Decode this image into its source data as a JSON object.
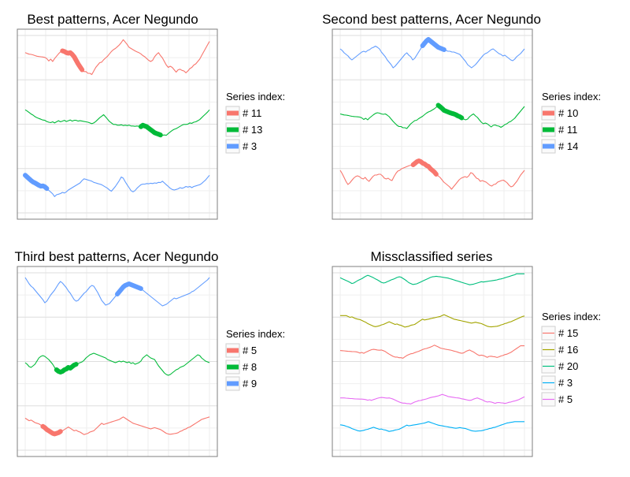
{
  "chart_data": [
    {
      "type": "line",
      "title": "Best patterns, Acer Negundo",
      "legend": {
        "title": "Series index:",
        "position": "right",
        "labels": [
          "# 11",
          "# 13",
          "# 3"
        ]
      },
      "x_range": [
        1,
        100
      ],
      "grid": true,
      "series": [
        {
          "name": "# 11",
          "color": "#F8766D",
          "offset": 0,
          "values": [
            0.55,
            0.48,
            0.42,
            0.4,
            0.36,
            0.3,
            0.25,
            0.22,
            0.2,
            0.18,
            0.15,
            0.05,
            -0.15,
            0.0,
            -0.2,
            0.05,
            0.25,
            0.45,
            0.62,
            0.7,
            0.65,
            0.55,
            0.5,
            0.55,
            0.4,
            0.2,
            -0.1,
            -0.4,
            -0.65,
            -0.9,
            -1.05,
            -1.05,
            -1.2,
            -1.2,
            -1.3,
            -1.0,
            -0.7,
            -0.5,
            -0.3,
            -0.25,
            -0.05,
            0.1,
            0.25,
            0.45,
            0.65,
            0.8,
            0.9,
            1.05,
            1.2,
            1.4,
            1.65,
            1.45,
            1.25,
            1.0,
            0.9,
            0.8,
            0.7,
            0.62,
            0.55,
            0.45,
            0.3,
            0.2,
            0.05,
            -0.1,
            -0.2,
            -0.1,
            0.2,
            0.4,
            0.55,
            0.3,
            0.1,
            -0.2,
            -0.5,
            -0.7,
            -0.6,
            -0.7,
            -0.9,
            -1.1,
            -0.9,
            -0.85,
            -0.95,
            -1.0,
            -1.15,
            -1.0,
            -0.8,
            -0.7,
            -0.5,
            -0.4,
            -0.2,
            0.0,
            0.3,
            0.6,
            0.9,
            1.2,
            1.5
          ],
          "highlight": [
            19,
            29
          ]
        },
        {
          "name": "# 13",
          "color": "#00BA38",
          "offset": 0,
          "values": [
            1.65,
            1.5,
            1.3,
            1.1,
            0.95,
            0.75,
            0.6,
            0.5,
            0.4,
            0.3,
            0.25,
            0.1,
            0.0,
            -0.05,
            0.05,
            -0.1,
            0.05,
            0.2,
            0.05,
            0.15,
            0.25,
            0.1,
            0.2,
            0.3,
            0.15,
            0.25,
            0.25,
            0.15,
            0.2,
            0.15,
            0.1,
            0.05,
            0.0,
            -0.1,
            -0.2,
            -0.1,
            0.1,
            0.35,
            0.6,
            0.8,
            1.0,
            0.7,
            0.4,
            0.1,
            -0.1,
            -0.3,
            -0.3,
            -0.4,
            -0.4,
            -0.35,
            -0.45,
            -0.4,
            -0.45,
            -0.4,
            -0.5,
            -0.5,
            -0.55,
            -0.5,
            -0.55,
            -0.6,
            -0.4,
            -0.5,
            -0.6,
            -0.8,
            -1.0,
            -1.2,
            -1.4,
            -1.5,
            -1.6,
            -1.7,
            -1.75,
            -1.7,
            -1.75,
            -1.5,
            -1.3,
            -1.1,
            -0.95,
            -0.85,
            -0.7,
            -0.55,
            -0.4,
            -0.3,
            -0.3,
            -0.25,
            -0.1,
            -0.15,
            0.0,
            0.05,
            0.2,
            0.35,
            0.6,
            0.85,
            1.1,
            1.35,
            1.65
          ],
          "highlight": [
            59,
            69
          ]
        },
        {
          "name": "# 3",
          "color": "#619CFF",
          "offset": 0,
          "values": [
            1.7,
            1.4,
            1.1,
            0.8,
            0.55,
            0.4,
            0.2,
            0.0,
            -0.15,
            -0.1,
            -0.25,
            -0.55,
            -0.85,
            -1.15,
            -1.45,
            -1.9,
            -1.6,
            -1.5,
            -1.4,
            -1.2,
            -1.3,
            -1.1,
            -0.8,
            -0.6,
            -0.4,
            -0.2,
            0.0,
            0.2,
            0.4,
            0.8,
            1.1,
            1.0,
            0.9,
            0.8,
            0.7,
            0.5,
            0.4,
            0.3,
            0.2,
            0.1,
            -0.1,
            -0.3,
            -0.5,
            -0.8,
            -1.0,
            -0.6,
            -0.2,
            0.3,
            0.8,
            1.4,
            1.2,
            0.6,
            0.1,
            -0.4,
            -0.9,
            -1.1,
            -0.9,
            -0.5,
            -0.2,
            0.1,
            0.2,
            0.2,
            0.3,
            0.25,
            0.35,
            0.3,
            0.4,
            0.35,
            0.5,
            0.45,
            0.7,
            0.4,
            0.1,
            -0.2,
            -0.5,
            -0.7,
            -0.8,
            -0.7,
            -0.6,
            -0.4,
            -0.5,
            -0.4,
            -0.2,
            -0.3,
            -0.2,
            -0.4,
            -0.2,
            -0.1,
            0.0,
            0.1,
            0.3,
            0.6,
            0.9,
            1.3,
            1.7
          ],
          "highlight": [
            0,
            11
          ]
        }
      ]
    },
    {
      "type": "line",
      "title": "Second best patterns, Acer Negundo",
      "legend": {
        "title": "Series index:",
        "position": "right",
        "labels": [
          "# 10",
          "# 11",
          "# 14"
        ]
      },
      "x_range": [
        1,
        100
      ],
      "grid": true,
      "series": [
        {
          "name": "# 10",
          "color": "#F8766D",
          "offset": 0,
          "values": [
            0.9,
            0.5,
            0.0,
            -0.5,
            -0.9,
            -0.7,
            -0.4,
            -0.1,
            0.1,
            0.2,
            0.1,
            -0.1,
            -0.2,
            0.0,
            -0.3,
            -0.5,
            -0.2,
            0.1,
            0.3,
            0.3,
            0.4,
            0.4,
            0.2,
            -0.1,
            -0.2,
            -0.1,
            -0.3,
            -0.4,
            0.1,
            0.5,
            0.8,
            0.9,
            1.1,
            1.2,
            1.3,
            1.4,
            1.5,
            1.55,
            1.6,
            1.8,
            2.0,
            2.1,
            2.0,
            1.8,
            1.7,
            1.5,
            1.4,
            1.1,
            0.9,
            0.7,
            0.4,
            0.2,
            0.0,
            -0.3,
            -0.6,
            -0.8,
            -1.0,
            -1.2,
            -1.5,
            -1.2,
            -0.9,
            -0.6,
            -0.3,
            -0.1,
            0.0,
            0.1,
            0.0,
            0.2,
            0.6,
            0.5,
            0.2,
            -0.1,
            -0.2,
            -0.5,
            -0.4,
            -0.5,
            -0.6,
            -0.8,
            -1.0,
            -1.1,
            -0.9,
            -0.85,
            -0.6,
            -0.5,
            -0.4,
            -0.35,
            -0.5,
            -0.7,
            -1.0,
            -1.2,
            -1.1,
            -0.8,
            -0.5,
            -0.1,
            0.3,
            0.6,
            0.9
          ],
          "highlight": [
            38,
            50
          ]
        },
        {
          "name": "# 11",
          "color": "#00BA38",
          "offset": 0,
          "values": [
            0.55,
            0.48,
            0.42,
            0.4,
            0.36,
            0.3,
            0.25,
            0.22,
            0.2,
            0.18,
            0.15,
            0.05,
            -0.15,
            0.0,
            -0.2,
            0.05,
            0.25,
            0.45,
            0.62,
            0.7,
            0.65,
            0.55,
            0.5,
            0.55,
            0.4,
            0.2,
            -0.1,
            -0.4,
            -0.65,
            -0.9,
            -1.05,
            -1.05,
            -1.2,
            -1.2,
            -1.3,
            -1.0,
            -0.7,
            -0.5,
            -0.3,
            -0.25,
            -0.05,
            0.1,
            0.25,
            0.45,
            0.65,
            0.8,
            0.9,
            1.05,
            1.2,
            1.4,
            1.65,
            1.45,
            1.25,
            1.0,
            0.9,
            0.8,
            0.7,
            0.62,
            0.55,
            0.45,
            0.3,
            0.2,
            0.05,
            -0.1,
            -0.2,
            -0.1,
            0.2,
            0.4,
            0.55,
            0.3,
            0.1,
            -0.2,
            -0.5,
            -0.7,
            -0.6,
            -0.7,
            -0.9,
            -1.1,
            -0.9,
            -0.85,
            -0.95,
            -1.0,
            -1.15,
            -1.0,
            -0.8,
            -0.7,
            -0.5,
            -0.4,
            -0.2,
            0.0,
            0.3,
            0.6,
            0.9,
            1.2,
            1.5
          ],
          "highlight": [
            50,
            62
          ]
        },
        {
          "name": "# 14",
          "color": "#619CFF",
          "offset": 0,
          "values": [
            1.0,
            0.8,
            0.5,
            0.3,
            0.1,
            -0.2,
            -0.4,
            -0.2,
            0.0,
            0.2,
            0.4,
            0.6,
            0.7,
            0.6,
            0.8,
            0.9,
            1.1,
            1.2,
            1.35,
            1.2,
            1.0,
            0.6,
            0.3,
            0.0,
            -0.4,
            -0.7,
            -1.0,
            -1.4,
            -1.2,
            -0.9,
            -0.6,
            -0.3,
            0.0,
            0.3,
            0.5,
            0.2,
            0.0,
            -0.4,
            -0.2,
            0.2,
            0.6,
            1.0,
            1.4,
            1.7,
            2.0,
            2.2,
            2.0,
            1.8,
            1.6,
            1.4,
            1.2,
            1.1,
            1.0,
            0.9,
            0.8,
            0.7,
            0.7,
            0.6,
            0.6,
            0.5,
            0.4,
            0.3,
            0.0,
            -0.3,
            -0.6,
            -1.0,
            -1.2,
            -1.4,
            -1.2,
            -1.0,
            -0.7,
            -0.4,
            -0.1,
            0.2,
            0.4,
            0.5,
            0.7,
            0.9,
            1.0,
            0.8,
            0.6,
            0.4,
            0.3,
            0.1,
            0.2,
            0.0,
            -0.2,
            -0.4,
            -0.5,
            -0.3,
            0.0,
            0.2,
            0.4,
            0.7,
            1.0
          ],
          "highlight": [
            42,
            53
          ]
        }
      ]
    },
    {
      "type": "line",
      "title": "Third best patterns, Acer Negundo",
      "legend": {
        "title": "Series index:",
        "position": "right",
        "labels": [
          "# 5",
          "# 8",
          "# 9"
        ]
      },
      "x_range": [
        1,
        100
      ],
      "grid": true,
      "series": [
        {
          "name": "# 5",
          "color": "#F8766D",
          "offset": 0,
          "values": [
            1.2,
            1.0,
            0.8,
            0.9,
            0.7,
            0.5,
            0.4,
            0.3,
            0.1,
            -0.1,
            -0.3,
            -0.6,
            -0.8,
            -1.0,
            -1.2,
            -1.3,
            -1.2,
            -1.1,
            -0.9,
            -0.8,
            -0.6,
            -0.4,
            -0.2,
            -0.4,
            -0.6,
            -0.8,
            -0.7,
            -0.9,
            -1.0,
            -1.2,
            -1.4,
            -1.3,
            -1.2,
            -1.0,
            -0.9,
            -0.8,
            -0.5,
            -0.2,
            0.1,
            0.4,
            0.2,
            0.3,
            0.4,
            0.5,
            0.6,
            0.7,
            0.8,
            0.9,
            1.0,
            1.2,
            1.4,
            1.2,
            1.0,
            0.8,
            0.6,
            0.4,
            0.3,
            0.2,
            0.1,
            0.0,
            -0.1,
            -0.2,
            -0.3,
            -0.4,
            -0.5,
            -0.4,
            -0.3,
            -0.4,
            -0.5,
            -0.6,
            -0.8,
            -1.0,
            -1.2,
            -1.3,
            -1.35,
            -1.3,
            -1.25,
            -1.2,
            -1.1,
            -0.9,
            -0.8,
            -0.6,
            -0.5,
            -0.3,
            -0.2,
            0.0,
            0.2,
            0.4,
            0.6,
            0.8,
            1.0,
            1.1,
            1.2,
            1.3,
            1.4
          ],
          "highlight": [
            9,
            18
          ]
        },
        {
          "name": "# 8",
          "color": "#00BA38",
          "offset": 0,
          "values": [
            0.0,
            -0.2,
            -0.5,
            -0.6,
            -0.4,
            -0.2,
            0.2,
            0.6,
            0.8,
            0.9,
            0.8,
            0.6,
            0.4,
            0.1,
            -0.2,
            -0.6,
            -0.9,
            -1.1,
            -1.2,
            -1.1,
            -0.9,
            -0.8,
            -0.6,
            -0.7,
            -0.5,
            -0.3,
            -0.2,
            -0.1,
            0.0,
            0.1,
            0.3,
            0.6,
            0.8,
            1.0,
            1.1,
            1.2,
            1.1,
            1.0,
            0.9,
            0.8,
            0.7,
            0.6,
            0.4,
            0.3,
            0.2,
            0.1,
            0.0,
            0.1,
            0.2,
            0.1,
            0.2,
            0.1,
            0.0,
            0.1,
            -0.1,
            0.0,
            -0.2,
            -0.1,
            0.0,
            0.2,
            0.6,
            0.8,
            1.0,
            0.8,
            0.6,
            0.5,
            0.4,
            0.0,
            -0.4,
            -0.7,
            -1.0,
            -1.3,
            -1.5,
            -1.6,
            -1.5,
            -1.3,
            -1.1,
            -0.9,
            -0.8,
            -0.6,
            -0.5,
            -0.4,
            -0.2,
            0.0,
            0.2,
            0.4,
            0.6,
            0.8,
            1.0,
            0.9,
            0.6,
            0.4,
            0.2,
            0.1,
            0.0
          ],
          "highlight": [
            16,
            26
          ]
        },
        {
          "name": "# 9",
          "color": "#619CFF",
          "offset": 0,
          "values": [
            2.0,
            1.6,
            1.2,
            0.9,
            0.7,
            0.4,
            0.1,
            -0.2,
            -0.5,
            -0.8,
            -1.2,
            -1.0,
            -0.6,
            -0.2,
            0.1,
            0.4,
            0.8,
            1.2,
            1.5,
            1.3,
            1.0,
            0.7,
            0.3,
            0.0,
            -0.4,
            -0.8,
            -1.0,
            -0.9,
            -0.6,
            -0.3,
            0.0,
            0.2,
            0.5,
            0.8,
            1.0,
            0.9,
            0.5,
            0.1,
            -0.4,
            -0.9,
            -1.2,
            -1.5,
            -1.4,
            -1.3,
            -1.0,
            -0.7,
            -0.4,
            -0.1,
            0.2,
            0.5,
            0.8,
            1.0,
            1.1,
            1.2,
            1.1,
            1.0,
            0.9,
            0.8,
            0.7,
            0.6,
            0.4,
            0.2,
            0.0,
            -0.2,
            -0.4,
            -0.6,
            -0.8,
            -1.0,
            -1.2,
            -1.4,
            -1.6,
            -1.5,
            -1.4,
            -1.2,
            -1.0,
            -0.8,
            -0.6,
            -0.7,
            -0.6,
            -0.5,
            -0.4,
            -0.3,
            -0.2,
            -0.1,
            0.0,
            0.2,
            0.3,
            0.5,
            0.7,
            0.9,
            1.1,
            1.3,
            1.5,
            1.7,
            2.0
          ],
          "highlight": [
            47,
            59
          ]
        }
      ]
    },
    {
      "type": "line",
      "title": "Missclassified series",
      "legend": {
        "title": "Series index:",
        "position": "right",
        "labels": [
          "# 15",
          "# 16",
          "# 20",
          "# 3",
          "# 5"
        ]
      },
      "x_range": [
        1,
        100
      ],
      "grid": true,
      "series": [
        {
          "name": "# 15",
          "color": "#F8766D",
          "offset": 0,
          "values": [],
          "highlight": null
        },
        {
          "name": "# 16",
          "color": "#A3A500",
          "offset": 0,
          "values": [],
          "highlight": null
        },
        {
          "name": "# 20",
          "color": "#00BF7D",
          "offset": 0,
          "values": [],
          "highlight": null
        },
        {
          "name": "# 3",
          "color": "#00B0F6",
          "offset": 0,
          "values": [],
          "highlight": null
        },
        {
          "name": "# 5",
          "color": "#E76BF3",
          "offset": 0,
          "values": [],
          "highlight": null
        }
      ]
    }
  ]
}
